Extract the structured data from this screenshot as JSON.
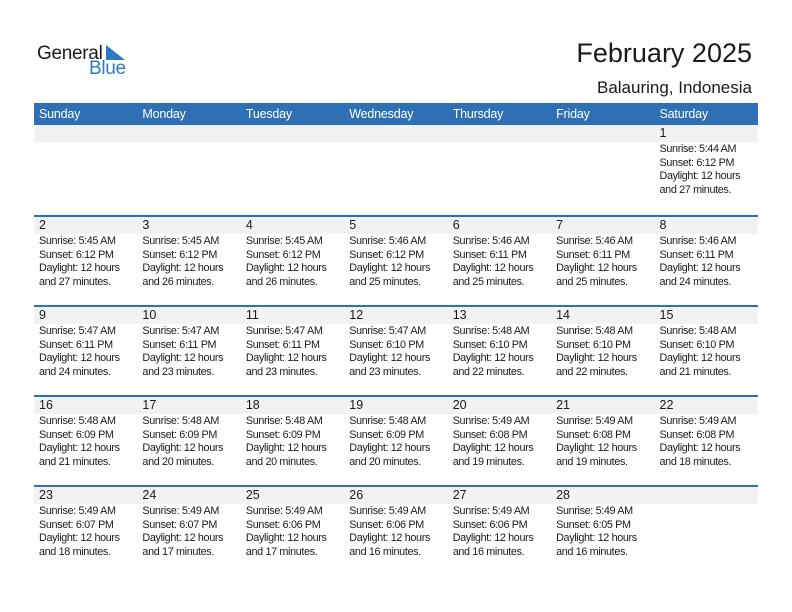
{
  "logo": {
    "line1": "General",
    "line2": "Blue",
    "color": "#2a7bc4"
  },
  "header": {
    "title": "February 2025",
    "location": "Balauring, Indonesia"
  },
  "colors": {
    "accent": "#2e70b3",
    "day_band": "#f2f2f2"
  },
  "weekdays": [
    "Sunday",
    "Monday",
    "Tuesday",
    "Wednesday",
    "Thursday",
    "Friday",
    "Saturday"
  ],
  "weeks": [
    [
      null,
      null,
      null,
      null,
      null,
      null,
      {
        "day": "1",
        "sunrise": "Sunrise: 5:44 AM",
        "sunset": "Sunset: 6:12 PM",
        "daylight1": "Daylight: 12 hours",
        "daylight2": "and 27 minutes."
      }
    ],
    [
      {
        "day": "2",
        "sunrise": "Sunrise: 5:45 AM",
        "sunset": "Sunset: 6:12 PM",
        "daylight1": "Daylight: 12 hours",
        "daylight2": "and 27 minutes."
      },
      {
        "day": "3",
        "sunrise": "Sunrise: 5:45 AM",
        "sunset": "Sunset: 6:12 PM",
        "daylight1": "Daylight: 12 hours",
        "daylight2": "and 26 minutes."
      },
      {
        "day": "4",
        "sunrise": "Sunrise: 5:45 AM",
        "sunset": "Sunset: 6:12 PM",
        "daylight1": "Daylight: 12 hours",
        "daylight2": "and 26 minutes."
      },
      {
        "day": "5",
        "sunrise": "Sunrise: 5:46 AM",
        "sunset": "Sunset: 6:12 PM",
        "daylight1": "Daylight: 12 hours",
        "daylight2": "and 25 minutes."
      },
      {
        "day": "6",
        "sunrise": "Sunrise: 5:46 AM",
        "sunset": "Sunset: 6:11 PM",
        "daylight1": "Daylight: 12 hours",
        "daylight2": "and 25 minutes."
      },
      {
        "day": "7",
        "sunrise": "Sunrise: 5:46 AM",
        "sunset": "Sunset: 6:11 PM",
        "daylight1": "Daylight: 12 hours",
        "daylight2": "and 25 minutes."
      },
      {
        "day": "8",
        "sunrise": "Sunrise: 5:46 AM",
        "sunset": "Sunset: 6:11 PM",
        "daylight1": "Daylight: 12 hours",
        "daylight2": "and 24 minutes."
      }
    ],
    [
      {
        "day": "9",
        "sunrise": "Sunrise: 5:47 AM",
        "sunset": "Sunset: 6:11 PM",
        "daylight1": "Daylight: 12 hours",
        "daylight2": "and 24 minutes."
      },
      {
        "day": "10",
        "sunrise": "Sunrise: 5:47 AM",
        "sunset": "Sunset: 6:11 PM",
        "daylight1": "Daylight: 12 hours",
        "daylight2": "and 23 minutes."
      },
      {
        "day": "11",
        "sunrise": "Sunrise: 5:47 AM",
        "sunset": "Sunset: 6:11 PM",
        "daylight1": "Daylight: 12 hours",
        "daylight2": "and 23 minutes."
      },
      {
        "day": "12",
        "sunrise": "Sunrise: 5:47 AM",
        "sunset": "Sunset: 6:10 PM",
        "daylight1": "Daylight: 12 hours",
        "daylight2": "and 23 minutes."
      },
      {
        "day": "13",
        "sunrise": "Sunrise: 5:48 AM",
        "sunset": "Sunset: 6:10 PM",
        "daylight1": "Daylight: 12 hours",
        "daylight2": "and 22 minutes."
      },
      {
        "day": "14",
        "sunrise": "Sunrise: 5:48 AM",
        "sunset": "Sunset: 6:10 PM",
        "daylight1": "Daylight: 12 hours",
        "daylight2": "and 22 minutes."
      },
      {
        "day": "15",
        "sunrise": "Sunrise: 5:48 AM",
        "sunset": "Sunset: 6:10 PM",
        "daylight1": "Daylight: 12 hours",
        "daylight2": "and 21 minutes."
      }
    ],
    [
      {
        "day": "16",
        "sunrise": "Sunrise: 5:48 AM",
        "sunset": "Sunset: 6:09 PM",
        "daylight1": "Daylight: 12 hours",
        "daylight2": "and 21 minutes."
      },
      {
        "day": "17",
        "sunrise": "Sunrise: 5:48 AM",
        "sunset": "Sunset: 6:09 PM",
        "daylight1": "Daylight: 12 hours",
        "daylight2": "and 20 minutes."
      },
      {
        "day": "18",
        "sunrise": "Sunrise: 5:48 AM",
        "sunset": "Sunset: 6:09 PM",
        "daylight1": "Daylight: 12 hours",
        "daylight2": "and 20 minutes."
      },
      {
        "day": "19",
        "sunrise": "Sunrise: 5:48 AM",
        "sunset": "Sunset: 6:09 PM",
        "daylight1": "Daylight: 12 hours",
        "daylight2": "and 20 minutes."
      },
      {
        "day": "20",
        "sunrise": "Sunrise: 5:49 AM",
        "sunset": "Sunset: 6:08 PM",
        "daylight1": "Daylight: 12 hours",
        "daylight2": "and 19 minutes."
      },
      {
        "day": "21",
        "sunrise": "Sunrise: 5:49 AM",
        "sunset": "Sunset: 6:08 PM",
        "daylight1": "Daylight: 12 hours",
        "daylight2": "and 19 minutes."
      },
      {
        "day": "22",
        "sunrise": "Sunrise: 5:49 AM",
        "sunset": "Sunset: 6:08 PM",
        "daylight1": "Daylight: 12 hours",
        "daylight2": "and 18 minutes."
      }
    ],
    [
      {
        "day": "23",
        "sunrise": "Sunrise: 5:49 AM",
        "sunset": "Sunset: 6:07 PM",
        "daylight1": "Daylight: 12 hours",
        "daylight2": "and 18 minutes."
      },
      {
        "day": "24",
        "sunrise": "Sunrise: 5:49 AM",
        "sunset": "Sunset: 6:07 PM",
        "daylight1": "Daylight: 12 hours",
        "daylight2": "and 17 minutes."
      },
      {
        "day": "25",
        "sunrise": "Sunrise: 5:49 AM",
        "sunset": "Sunset: 6:06 PM",
        "daylight1": "Daylight: 12 hours",
        "daylight2": "and 17 minutes."
      },
      {
        "day": "26",
        "sunrise": "Sunrise: 5:49 AM",
        "sunset": "Sunset: 6:06 PM",
        "daylight1": "Daylight: 12 hours",
        "daylight2": "and 16 minutes."
      },
      {
        "day": "27",
        "sunrise": "Sunrise: 5:49 AM",
        "sunset": "Sunset: 6:06 PM",
        "daylight1": "Daylight: 12 hours",
        "daylight2": "and 16 minutes."
      },
      {
        "day": "28",
        "sunrise": "Sunrise: 5:49 AM",
        "sunset": "Sunset: 6:05 PM",
        "daylight1": "Daylight: 12 hours",
        "daylight2": "and 16 minutes."
      },
      null
    ]
  ]
}
